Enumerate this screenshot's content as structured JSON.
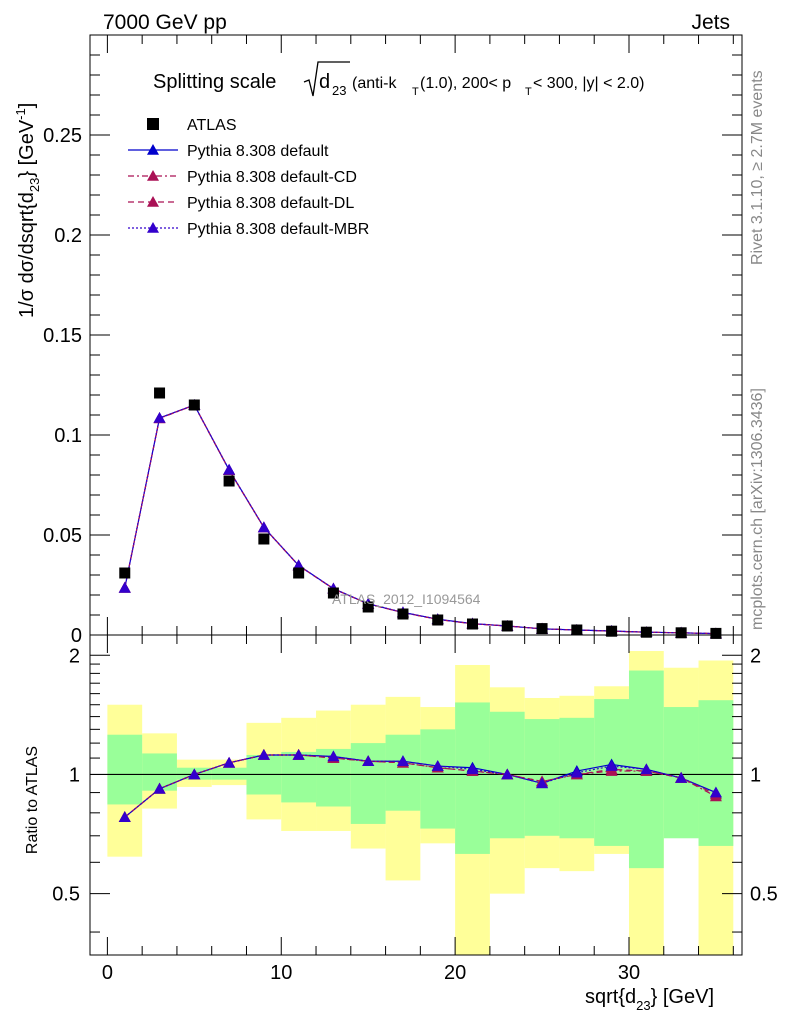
{
  "header": {
    "left": "7000 GeV pp",
    "right": "Jets"
  },
  "side_labels": {
    "rivet": "Rivet 3.1.10, ≥ 2.7M events",
    "mcplots": "mcplots.cern.ch [arXiv:1306.3436]"
  },
  "chart_data": [
    {
      "type": "line",
      "title": {
        "prefix": "Splitting scale",
        "d": "d",
        "sub": "23",
        "tail1": " (anti-k",
        "tail_sub": "T",
        "tail2": "(1.0), 200< p",
        "tail2_sub": "T",
        "tail3": " < 300, |y| < 2.0)"
      },
      "ylabel": {
        "a": "1/σ dσ/dsqrt{d",
        "sub": "23",
        "b": "} [GeV",
        "sup": "-1",
        "c": "]"
      },
      "watermark": "ATLAS_2012_I1094564",
      "xlim": [
        -1,
        36.5
      ],
      "ylim": [
        0,
        0.3
      ],
      "yticks": [
        0,
        0.05,
        0.1,
        0.15,
        0.2,
        0.25
      ],
      "ytick_labels": [
        "0",
        "0.05",
        "0.1",
        "0.15",
        "0.2",
        "0.25"
      ],
      "x": [
        1,
        3,
        5,
        7,
        9,
        11,
        13,
        15,
        17,
        19,
        21,
        23,
        25,
        27,
        29,
        31,
        33,
        35
      ],
      "reference": {
        "name": "ATLAS",
        "values": [
          0.031,
          0.121,
          0.115,
          0.077,
          0.048,
          0.031,
          0.021,
          0.014,
          0.0105,
          0.0075,
          0.0055,
          0.0045,
          0.0032,
          0.0025,
          0.0019,
          0.0014,
          0.0011,
          0.0008
        ]
      },
      "series": [
        {
          "name": "Pythia 8.308 default",
          "color": "#0000cc",
          "dash": "",
          "values": [
            0.0235,
            0.1085,
            0.115,
            0.0826,
            0.0538,
            0.0348,
            0.0232,
            0.0156,
            0.0113,
            0.0079,
            0.0057,
            0.0045,
            0.0031,
            0.0025,
            0.002,
            0.0014,
            0.0011,
            0.0007
          ]
        },
        {
          "name": "Pythia 8.308 default-CD",
          "color": "#aa1155",
          "dash": "6,3,2,3",
          "values": [
            0.0236,
            0.1083,
            0.1149,
            0.0824,
            0.0537,
            0.0347,
            0.0231,
            0.0155,
            0.0112,
            0.0078,
            0.0056,
            0.0045,
            0.0031,
            0.0025,
            0.0019,
            0.0014,
            0.0011,
            0.0007
          ]
        },
        {
          "name": "Pythia 8.308 default-DL",
          "color": "#aa1155",
          "dash": "6,4",
          "values": [
            0.0236,
            0.1084,
            0.115,
            0.0825,
            0.0538,
            0.0347,
            0.0231,
            0.0155,
            0.0112,
            0.0078,
            0.0056,
            0.0045,
            0.0031,
            0.0025,
            0.0019,
            0.0014,
            0.0011,
            0.0007
          ]
        },
        {
          "name": "Pythia 8.308 default-MBR",
          "color": "#3300cc",
          "dash": "2,2",
          "values": [
            0.0236,
            0.1085,
            0.115,
            0.0826,
            0.0538,
            0.0348,
            0.0232,
            0.0156,
            0.0113,
            0.0079,
            0.0057,
            0.0045,
            0.0031,
            0.0025,
            0.002,
            0.0014,
            0.0011,
            0.0007
          ]
        }
      ]
    },
    {
      "type": "line",
      "ylabel": "Ratio to ATLAS",
      "xlabel": {
        "a": "sqrt{d",
        "sub": "23",
        "b": "} [GeV]"
      },
      "xlim": [
        -1,
        36.5
      ],
      "ylim": [
        0.35,
        2.25
      ],
      "yticks": [
        0.5,
        1,
        2
      ],
      "ytick_labels": [
        "0.5",
        "1",
        "2"
      ],
      "xticks": [
        0,
        10,
        20,
        30
      ],
      "xtick_labels": [
        "0",
        "10",
        "20",
        "30"
      ],
      "bins": [
        [
          0,
          2
        ],
        [
          2,
          4
        ],
        [
          4,
          6
        ],
        [
          6,
          8
        ],
        [
          8,
          10
        ],
        [
          10,
          12
        ],
        [
          12,
          14
        ],
        [
          14,
          16
        ],
        [
          16,
          18
        ],
        [
          18,
          20
        ],
        [
          20,
          22
        ],
        [
          22,
          24
        ],
        [
          24,
          26
        ],
        [
          26,
          28
        ],
        [
          28,
          30
        ],
        [
          30,
          32
        ],
        [
          32,
          34
        ],
        [
          34,
          36
        ]
      ],
      "band_inner": [
        [
          0.84,
          1.26
        ],
        [
          0.91,
          1.13
        ],
        [
          0.97,
          1.04
        ],
        [
          0.97,
          1.04
        ],
        [
          0.89,
          1.12
        ],
        [
          0.85,
          1.14
        ],
        [
          0.83,
          1.16
        ],
        [
          0.75,
          1.2
        ],
        [
          0.81,
          1.26
        ],
        [
          0.73,
          1.3
        ],
        [
          0.63,
          1.52
        ],
        [
          0.69,
          1.44
        ],
        [
          0.7,
          1.38
        ],
        [
          0.69,
          1.39
        ],
        [
          0.66,
          1.55
        ],
        [
          0.58,
          1.83
        ],
        [
          0.69,
          1.48
        ],
        [
          0.66,
          1.54
        ]
      ],
      "band_outer": [
        [
          0.62,
          1.5
        ],
        [
          0.82,
          1.27
        ],
        [
          0.93,
          1.09
        ],
        [
          0.94,
          1.09
        ],
        [
          0.77,
          1.35
        ],
        [
          0.72,
          1.39
        ],
        [
          0.72,
          1.45
        ],
        [
          0.65,
          1.5
        ],
        [
          0.54,
          1.57
        ],
        [
          0.67,
          1.48
        ],
        [
          0.35,
          1.89
        ],
        [
          0.5,
          1.66
        ],
        [
          0.58,
          1.56
        ],
        [
          0.57,
          1.58
        ],
        [
          0.63,
          1.67
        ],
        [
          0.35,
          2.05
        ],
        [
          0.72,
          1.86
        ],
        [
          0.35,
          1.94
        ]
      ],
      "series": [
        {
          "name": "Pythia 8.308 default",
          "color": "#0000cc",
          "dash": "",
          "values": [
            0.78,
            0.92,
            1.0,
            1.07,
            1.12,
            1.12,
            1.11,
            1.08,
            1.08,
            1.05,
            1.04,
            1.0,
            0.95,
            1.02,
            1.06,
            1.03,
            0.98,
            0.9
          ]
        },
        {
          "name": "Pythia 8.308 default-CD",
          "color": "#aa1155",
          "dash": "6,3,2,3",
          "values": [
            0.78,
            0.92,
            1.0,
            1.07,
            1.12,
            1.12,
            1.1,
            1.08,
            1.07,
            1.04,
            1.02,
            1.0,
            0.96,
            1.0,
            1.02,
            1.02,
            0.98,
            0.88
          ]
        },
        {
          "name": "Pythia 8.308 default-DL",
          "color": "#aa1155",
          "dash": "6,4",
          "values": [
            0.78,
            0.92,
            1.0,
            1.07,
            1.12,
            1.12,
            1.1,
            1.08,
            1.07,
            1.04,
            1.02,
            1.0,
            0.96,
            1.0,
            1.03,
            1.02,
            0.98,
            0.89
          ]
        },
        {
          "name": "Pythia 8.308 default-MBR",
          "color": "#3300cc",
          "dash": "2,2",
          "values": [
            0.78,
            0.92,
            1.0,
            1.07,
            1.12,
            1.12,
            1.11,
            1.08,
            1.08,
            1.05,
            1.03,
            1.0,
            0.95,
            1.01,
            1.05,
            1.03,
            0.98,
            0.9
          ]
        }
      ]
    }
  ]
}
